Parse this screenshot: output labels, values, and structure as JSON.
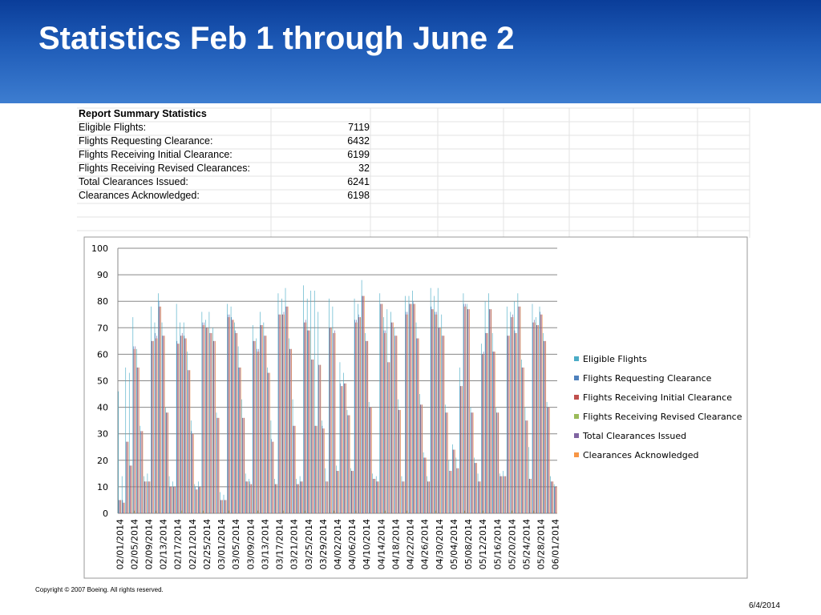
{
  "header": {
    "title": "Statistics Feb 1 through June 2"
  },
  "table": {
    "title": "Report Summary Statistics",
    "rows": [
      [
        "Eligible Flights:",
        7119
      ],
      [
        "Flights Requesting Clearance:",
        6432
      ],
      [
        "Flights Receiving Initial Clearance:",
        6199
      ],
      [
        "Flights Receiving Revised Clearances:",
        32
      ],
      [
        "Total Clearances Issued:",
        6241
      ],
      [
        "Clearances Acknowledged:",
        6198
      ]
    ]
  },
  "chart_data": {
    "type": "bar",
    "ylim": [
      0,
      100
    ],
    "yticks": [
      0,
      10,
      20,
      30,
      40,
      50,
      60,
      70,
      80,
      90,
      100
    ],
    "grid": true,
    "legend": "right",
    "categories": [
      "02/01/2014",
      null,
      null,
      null,
      "02/05/2014",
      null,
      null,
      null,
      "02/09/2014",
      null,
      null,
      null,
      "02/13/2014",
      null,
      null,
      null,
      "02/17/2014",
      null,
      null,
      null,
      "02/21/2014",
      null,
      null,
      null,
      "02/25/2014",
      null,
      null,
      null,
      "03/01/2014",
      null,
      null,
      null,
      "03/05/2014",
      null,
      null,
      null,
      "03/09/2014",
      null,
      null,
      null,
      "03/13/2014",
      null,
      null,
      null,
      "03/17/2014",
      null,
      null,
      null,
      "03/21/2014",
      null,
      null,
      null,
      "03/25/2014",
      null,
      null,
      null,
      "03/29/2014",
      null,
      null,
      null,
      "04/02/2014",
      null,
      null,
      null,
      "04/06/2014",
      null,
      null,
      null,
      "04/10/2014",
      null,
      null,
      null,
      "04/14/2014",
      null,
      null,
      null,
      "04/18/2014",
      null,
      null,
      null,
      "04/22/2014",
      null,
      null,
      null,
      "04/26/2014",
      null,
      null,
      null,
      "04/30/2014",
      null,
      null,
      null,
      "05/04/2014",
      null,
      null,
      null,
      "05/08/2014",
      null,
      null,
      null,
      "05/12/2014",
      null,
      null,
      null,
      "05/16/2014",
      null,
      null,
      null,
      "05/20/2014",
      null,
      null,
      null,
      "05/24/2014",
      null,
      null,
      null,
      "05/28/2014",
      null,
      null,
      null,
      "06/01/2014"
    ],
    "series": [
      {
        "name": "Eligible Flights",
        "color": "#4bacc6",
        "values": [
          46,
          14,
          55,
          53,
          74,
          62,
          33,
          14,
          15,
          78,
          72,
          83,
          72,
          40,
          14,
          12,
          79,
          72,
          72,
          61,
          35,
          11,
          12,
          76,
          73,
          76,
          70,
          38,
          8,
          7,
          79,
          78,
          72,
          63,
          43,
          15,
          13,
          71,
          66,
          76,
          72,
          55,
          35,
          13,
          83,
          81,
          85,
          66,
          43,
          13,
          14,
          86,
          81,
          84,
          84,
          76,
          35,
          17,
          81,
          78,
          18,
          57,
          53,
          39,
          17,
          81,
          79,
          88,
          68,
          42,
          15,
          14,
          83,
          74,
          77,
          76,
          70,
          43,
          14,
          82,
          82,
          84,
          72,
          45,
          23,
          14,
          85,
          82,
          85,
          75,
          41,
          20,
          26,
          21,
          55,
          83,
          79,
          40,
          21,
          15,
          64,
          80,
          83,
          68,
          40,
          15,
          16,
          78,
          76,
          80,
          83,
          58,
          40,
          25,
          79,
          74,
          78,
          68,
          42,
          14,
          11
        ]
      },
      {
        "name": "Flights Requesting Clearance",
        "color": "#4f81bd",
        "values": [
          5,
          5,
          27,
          18,
          63,
          55,
          31,
          12,
          12,
          65,
          68,
          80,
          67,
          38,
          10,
          10,
          65,
          67,
          67,
          54,
          31,
          10,
          10,
          72,
          70,
          68,
          65,
          36,
          5,
          5,
          75,
          74,
          69,
          55,
          36,
          12,
          12,
          65,
          62,
          71,
          67,
          53,
          28,
          11,
          75,
          75,
          78,
          62,
          33,
          11,
          12,
          72,
          69,
          58,
          33,
          56,
          33,
          12,
          70,
          68,
          16,
          49,
          49,
          37,
          16,
          73,
          75,
          82,
          65,
          40,
          13,
          12,
          79,
          69,
          57,
          72,
          67,
          39,
          12,
          76,
          79,
          80,
          66,
          41,
          21,
          12,
          78,
          76,
          70,
          67,
          38,
          16,
          24,
          17,
          48,
          79,
          77,
          38,
          19,
          12,
          60,
          68,
          77,
          61,
          38,
          14,
          14,
          67,
          74,
          69,
          78,
          55,
          35,
          13,
          72,
          71,
          76,
          65,
          40,
          12,
          10
        ]
      },
      {
        "name": "Flights Receiving Initial Clearance",
        "color": "#c0504d",
        "values": [
          5,
          4,
          27,
          18,
          62,
          55,
          31,
          12,
          12,
          65,
          66,
          78,
          67,
          38,
          10,
          10,
          64,
          67,
          66,
          54,
          30,
          9,
          10,
          71,
          70,
          68,
          65,
          36,
          5,
          5,
          74,
          73,
          68,
          55,
          36,
          12,
          11,
          65,
          61,
          71,
          67,
          53,
          27,
          11,
          75,
          75,
          78,
          62,
          33,
          11,
          12,
          72,
          69,
          58,
          33,
          56,
          32,
          12,
          70,
          68,
          16,
          48,
          49,
          37,
          16,
          72,
          74,
          82,
          65,
          40,
          13,
          12,
          79,
          68,
          57,
          72,
          67,
          39,
          12,
          75,
          79,
          79,
          66,
          41,
          21,
          12,
          77,
          75,
          70,
          67,
          38,
          16,
          24,
          17,
          48,
          78,
          77,
          38,
          19,
          12,
          60,
          68,
          77,
          61,
          38,
          14,
          14,
          67,
          74,
          68,
          78,
          55,
          35,
          13,
          72,
          71,
          75,
          65,
          40,
          12,
          10
        ]
      },
      {
        "name": "Flights Receiving Revised Clearance",
        "color": "#9bbb59",
        "values": [
          0,
          0,
          0,
          0,
          1,
          0,
          0,
          0,
          0,
          0,
          1,
          0,
          0,
          0,
          0,
          0,
          0,
          1,
          0,
          0,
          0,
          0,
          0,
          1,
          0,
          0,
          0,
          0,
          0,
          0,
          1,
          0,
          0,
          0,
          0,
          0,
          0,
          0,
          1,
          0,
          0,
          0,
          0,
          0,
          0,
          1,
          0,
          0,
          0,
          0,
          0,
          1,
          0,
          0,
          0,
          0,
          0,
          0,
          0,
          1,
          0,
          0,
          0,
          0,
          0,
          1,
          0,
          0,
          0,
          0,
          0,
          0,
          0,
          1,
          0,
          0,
          0,
          0,
          0,
          1,
          0,
          0,
          0,
          0,
          0,
          0,
          0,
          1,
          0,
          0,
          0,
          0,
          0,
          0,
          0,
          1,
          0,
          0,
          0,
          0,
          1,
          0,
          0,
          0,
          0,
          0,
          0,
          0,
          1,
          0,
          0,
          0,
          0,
          0,
          1,
          0,
          0,
          0,
          0,
          0,
          0
        ]
      },
      {
        "name": "Total Clearances Issued",
        "color": "#8064a2",
        "values": [
          5,
          4,
          27,
          18,
          63,
          55,
          31,
          12,
          12,
          65,
          67,
          78,
          67,
          38,
          10,
          10,
          64,
          68,
          66,
          54,
          30,
          9,
          10,
          72,
          70,
          68,
          65,
          36,
          5,
          5,
          75,
          73,
          68,
          55,
          36,
          12,
          11,
          65,
          62,
          71,
          67,
          53,
          27,
          11,
          75,
          76,
          78,
          62,
          33,
          11,
          12,
          73,
          69,
          58,
          33,
          56,
          32,
          12,
          70,
          69,
          16,
          48,
          49,
          37,
          16,
          73,
          74,
          82,
          65,
          40,
          13,
          12,
          79,
          69,
          57,
          72,
          67,
          39,
          12,
          76,
          79,
          79,
          66,
          41,
          21,
          12,
          77,
          76,
          70,
          67,
          38,
          16,
          24,
          17,
          48,
          79,
          77,
          38,
          19,
          12,
          61,
          68,
          77,
          61,
          38,
          14,
          14,
          67,
          75,
          68,
          78,
          55,
          35,
          13,
          73,
          71,
          75,
          65,
          40,
          12,
          10
        ]
      },
      {
        "name": "Clearances Acknowledged",
        "color": "#f79646",
        "values": [
          5,
          4,
          27,
          18,
          62,
          55,
          31,
          12,
          12,
          65,
          66,
          78,
          67,
          38,
          10,
          10,
          64,
          67,
          66,
          54,
          30,
          9,
          10,
          71,
          70,
          68,
          65,
          36,
          5,
          5,
          74,
          73,
          68,
          55,
          36,
          12,
          11,
          65,
          61,
          71,
          67,
          53,
          27,
          11,
          75,
          75,
          78,
          62,
          33,
          11,
          12,
          72,
          69,
          58,
          33,
          56,
          32,
          12,
          70,
          68,
          16,
          48,
          49,
          37,
          16,
          72,
          74,
          82,
          65,
          40,
          13,
          12,
          79,
          68,
          57,
          72,
          67,
          39,
          12,
          75,
          79,
          79,
          66,
          41,
          21,
          12,
          77,
          75,
          70,
          67,
          38,
          16,
          24,
          17,
          48,
          78,
          77,
          38,
          19,
          12,
          60,
          68,
          77,
          61,
          38,
          14,
          14,
          67,
          74,
          68,
          78,
          55,
          35,
          13,
          72,
          71,
          75,
          65,
          40,
          12,
          10
        ]
      }
    ]
  }
}
